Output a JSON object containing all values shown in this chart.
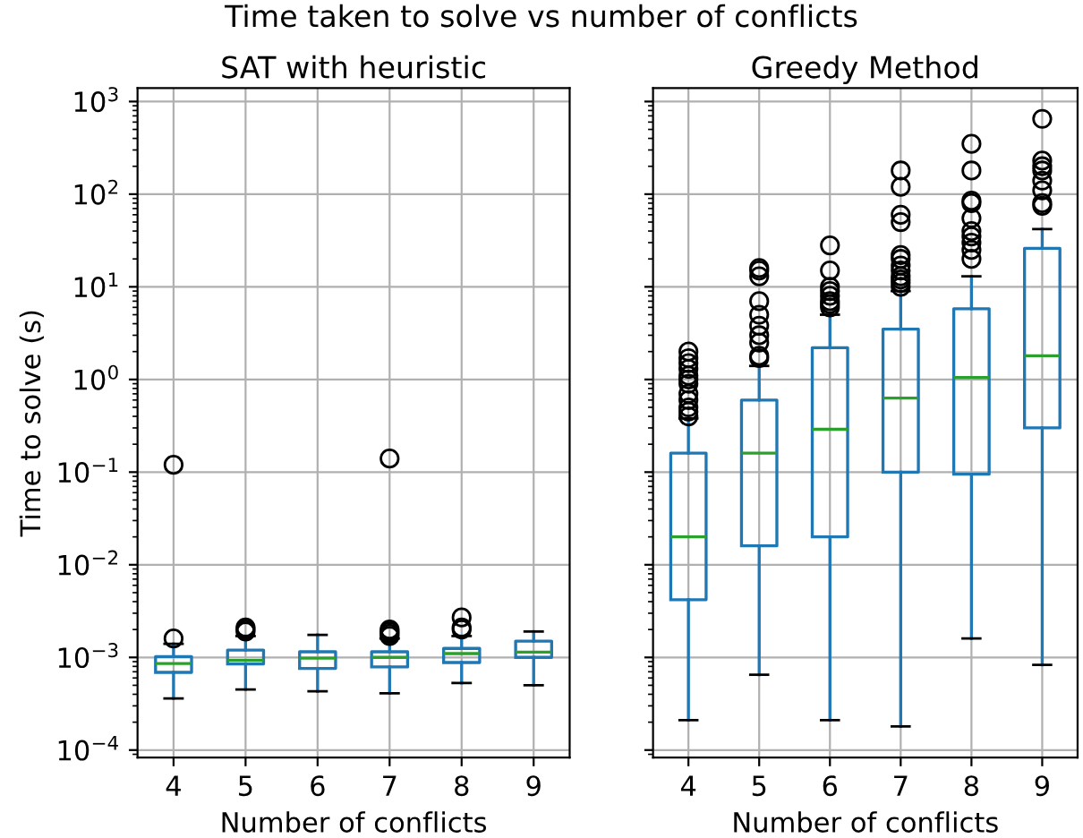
{
  "chart_data": [
    {
      "type": "box",
      "title": "SAT with heuristic",
      "xlabel": "Number of conflicts",
      "ylabel": "Time to solve (s)",
      "annotations": [
        "Time taken to solve vs number of conflicts"
      ],
      "color": "#1f77b4",
      "log": "y",
      "grid": true,
      "categories": [
        "4",
        "5",
        "6",
        "7",
        "8",
        "9"
      ],
      "ylim": [
        8.3e-05,
        1400
      ],
      "yticks": [
        {
          "value": 0.0001,
          "label": "10$^{−4}$"
        },
        {
          "value": 0.001,
          "label": "10$^{−3}$"
        },
        {
          "value": 0.01,
          "label": "10$^{−2}$"
        },
        {
          "value": 0.1,
          "label": "10$^{−1}$"
        },
        {
          "value": 1,
          "label": "10$^{0}$"
        },
        {
          "value": 10,
          "label": "10$^{1}$"
        },
        {
          "value": 100,
          "label": "10$^{2}$"
        },
        {
          "value": 1000,
          "label": "10$^{3}$"
        }
      ],
      "boxes": [
        {
          "low": 0.00036,
          "q1": 0.00069,
          "median": 0.00086,
          "q3": 0.00102,
          "high": 0.0014,
          "outliers": [
            0.0016,
            0.12
          ]
        },
        {
          "low": 0.00045,
          "q1": 0.00085,
          "median": 0.00093,
          "q3": 0.0012,
          "high": 0.0017,
          "outliers": [
            0.0019,
            0.002,
            0.0021
          ]
        },
        {
          "low": 0.00043,
          "q1": 0.00076,
          "median": 0.00098,
          "q3": 0.00115,
          "high": 0.00175
        },
        {
          "low": 0.00041,
          "q1": 0.00079,
          "median": 0.001,
          "q3": 0.00115,
          "high": 0.0016,
          "outliers": [
            0.0017,
            0.0018,
            0.0019,
            0.002,
            0.14
          ]
        },
        {
          "low": 0.00053,
          "q1": 0.00088,
          "median": 0.0011,
          "q3": 0.00125,
          "high": 0.0017,
          "outliers": [
            0.002,
            0.0021,
            0.0027
          ]
        },
        {
          "low": 0.0005,
          "q1": 0.001,
          "median": 0.00114,
          "q3": 0.0015,
          "high": 0.0019
        }
      ]
    },
    {
      "type": "box",
      "title": "Greedy Method",
      "xlabel": "Number of conflicts",
      "color": "#1f77b4",
      "log": "y",
      "grid": true,
      "tick_labels": "x",
      "categories": [
        "4",
        "5",
        "6",
        "7",
        "8",
        "9"
      ],
      "ylim": [
        8.3e-05,
        1400
      ],
      "yticks": [
        {
          "value": 0.0001,
          "label": null
        },
        {
          "value": 0.001,
          "label": null
        },
        {
          "value": 0.01,
          "label": null
        },
        {
          "value": 0.1,
          "label": null
        },
        {
          "value": 1,
          "label": null
        },
        {
          "value": 10,
          "label": null
        },
        {
          "value": 100,
          "label": null
        },
        {
          "value": 1000,
          "label": null
        }
      ],
      "boxes": [
        {
          "low": 0.00021,
          "q1": 0.0042,
          "median": 0.02,
          "q3": 0.16,
          "high": 0.38,
          "outliers": [
            0.4,
            0.45,
            0.5,
            0.6,
            0.7,
            0.9,
            1.0,
            1.1,
            1.3,
            1.5,
            1.7,
            2.0
          ]
        },
        {
          "low": 0.00065,
          "q1": 0.016,
          "median": 0.16,
          "q3": 0.6,
          "high": 1.4,
          "outliers": [
            1.7,
            1.8,
            2.5,
            3,
            3.8,
            5,
            7,
            13,
            15,
            16
          ]
        },
        {
          "low": 0.00021,
          "q1": 0.02,
          "median": 0.29,
          "q3": 2.2,
          "high": 5.0,
          "outliers": [
            6,
            6.5,
            7,
            8,
            9,
            10,
            15,
            28
          ]
        },
        {
          "low": 0.00018,
          "q1": 0.1,
          "median": 0.63,
          "q3": 3.5,
          "high": 9,
          "outliers": [
            10,
            11,
            12,
            13,
            15,
            17,
            20,
            22,
            50,
            60,
            120,
            180
          ]
        },
        {
          "low": 0.0016,
          "q1": 0.095,
          "median": 1.05,
          "q3": 5.8,
          "high": 13,
          "outliers": [
            20,
            25,
            30,
            35,
            40,
            55,
            80,
            85,
            180,
            350
          ]
        },
        {
          "low": 0.00083,
          "q1": 0.3,
          "median": 1.8,
          "q3": 26,
          "high": 42,
          "outliers": [
            75,
            80,
            110,
            140,
            180,
            200,
            230,
            650
          ]
        }
      ]
    }
  ]
}
